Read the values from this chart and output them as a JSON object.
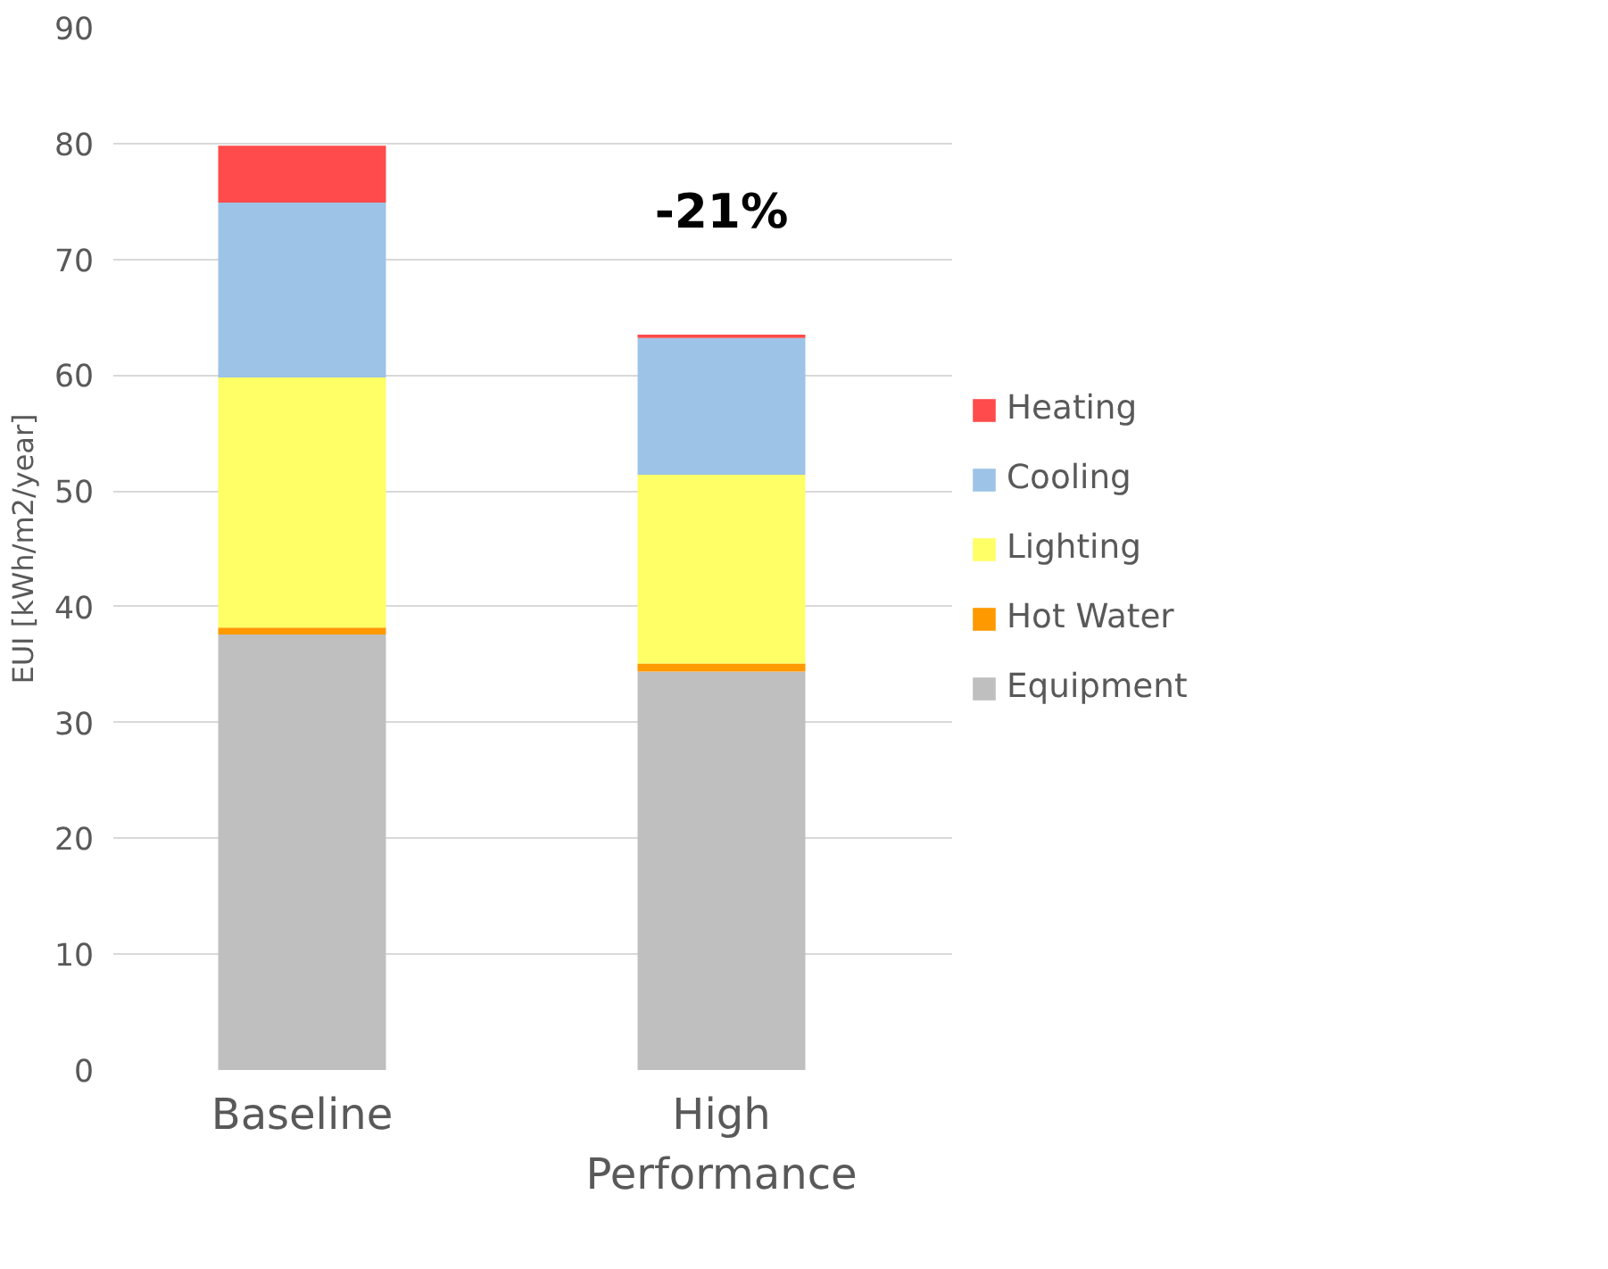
{
  "chart_data": {
    "type": "bar",
    "stacked": true,
    "ylabel": "EUI [kWh/m2/year]",
    "categories": [
      "Baseline",
      "High Performance"
    ],
    "series": [
      {
        "name": "Equipment",
        "color": "#bfbfbf",
        "values": [
          37.6,
          34.4
        ]
      },
      {
        "name": "Hot Water",
        "color": "#ff9900",
        "values": [
          0.6,
          0.7
        ]
      },
      {
        "name": "Lighting",
        "color": "#ffff66",
        "values": [
          21.6,
          16.3
        ]
      },
      {
        "name": "Cooling",
        "color": "#9dc3e6",
        "values": [
          15.1,
          11.8
        ]
      },
      {
        "name": "Heating",
        "color": "#ff4b4b",
        "values": [
          4.9,
          0.3
        ]
      }
    ],
    "ylim": [
      0,
      90
    ],
    "yticks": [
      0,
      10,
      20,
      30,
      40,
      50,
      60,
      70,
      80,
      90
    ],
    "grid": "y",
    "legend": "right",
    "annotations": [
      "-21%"
    ]
  }
}
